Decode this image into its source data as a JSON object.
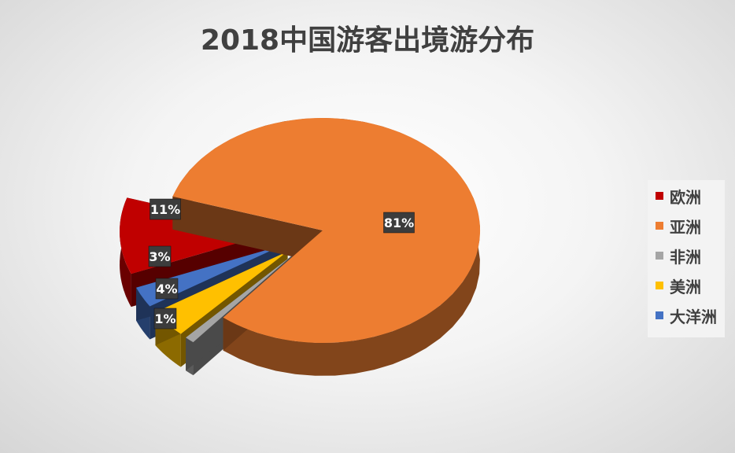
{
  "chart_data": {
    "type": "pie",
    "title": "2018中国游客出境游分布",
    "categories": [
      "欧洲",
      "亚洲",
      "非洲",
      "美洲",
      "大洋洲"
    ],
    "values": [
      11,
      81,
      1,
      4,
      3
    ],
    "data_labels": [
      "11%",
      "81%",
      "1%",
      "4%",
      "3%"
    ],
    "colors": [
      "#c00000",
      "#ed7d31",
      "#a5a5a5",
      "#ffc000",
      "#4472c4"
    ],
    "style": "3d-exploded",
    "legend": {
      "position": "right",
      "order": [
        "欧洲",
        "亚洲",
        "非洲",
        "美洲",
        "大洋洲"
      ],
      "colors": [
        "#c00000",
        "#ed7d31",
        "#a5a5a5",
        "#ffc000",
        "#4472c4"
      ]
    }
  }
}
